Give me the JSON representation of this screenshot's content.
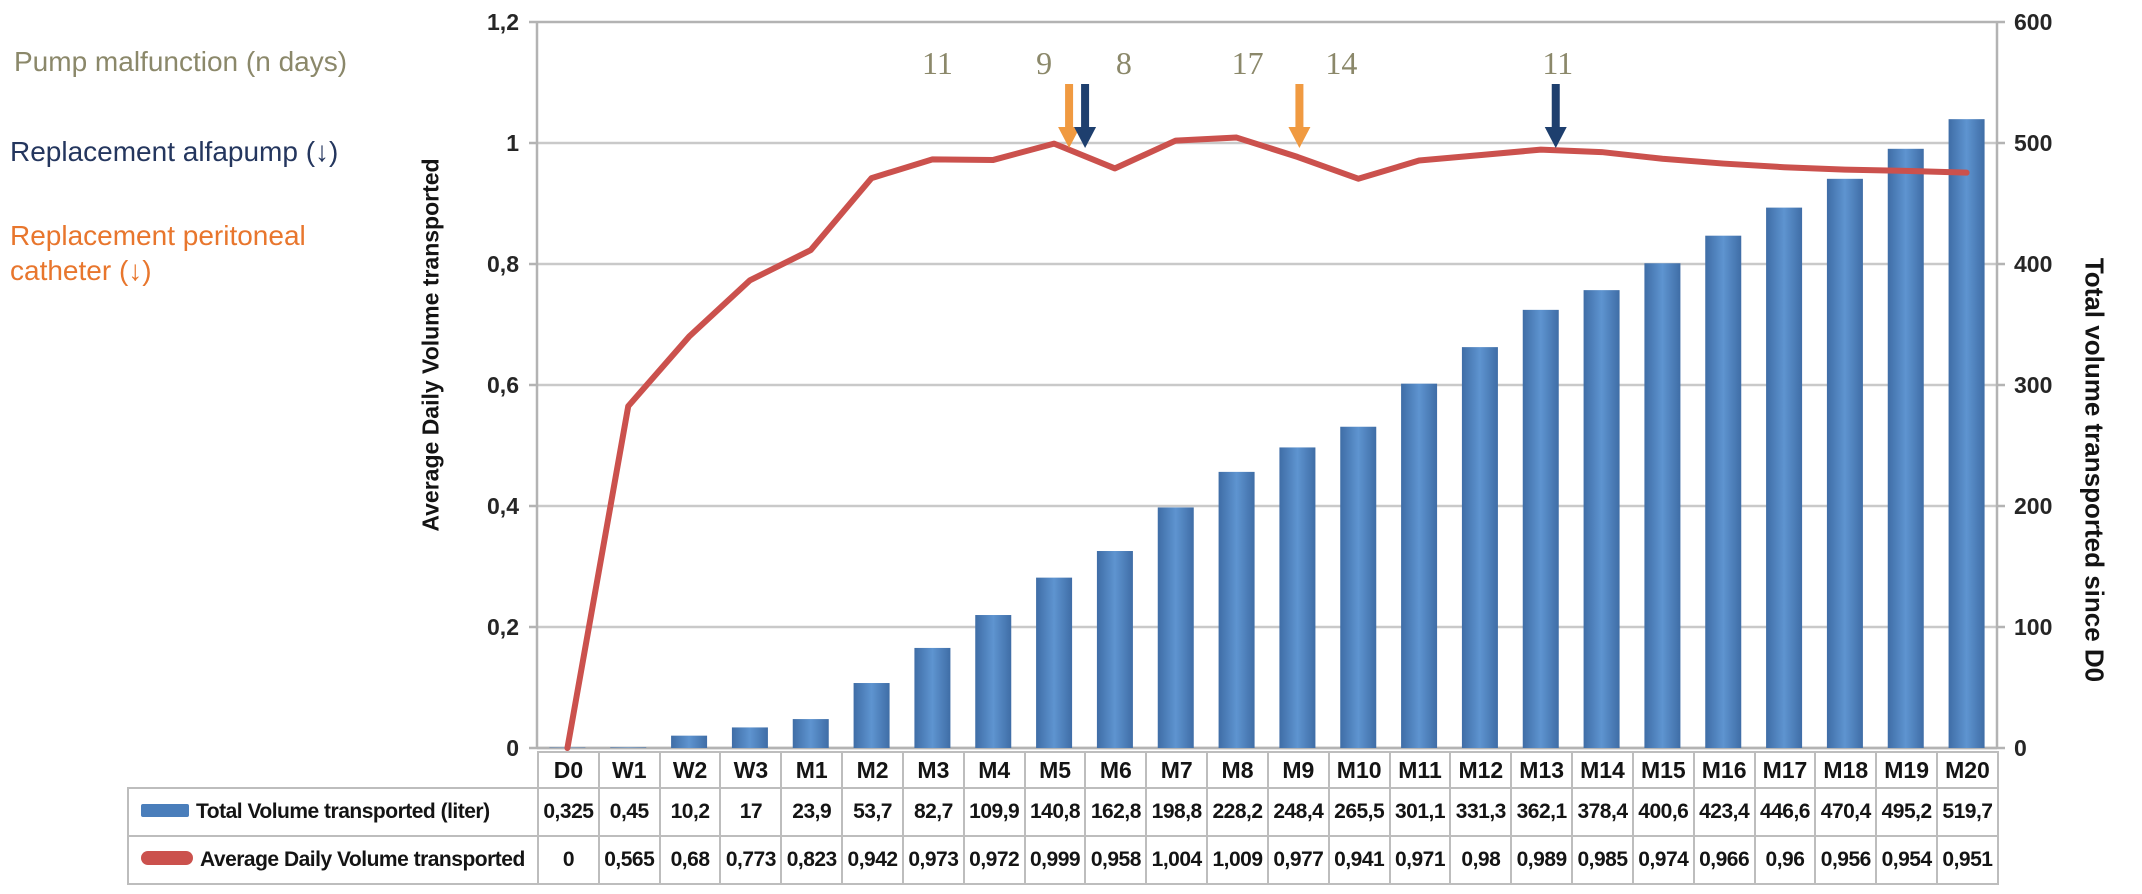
{
  "side_legend": {
    "pump_malfunction": "Pump malfunction (n days)",
    "replacement_alfapump": "Replacement alfapump (↓)",
    "replacement_catheter": "Replacement peritoneal catheter (↓)",
    "colors": {
      "pump": "#8b886a",
      "alfapump": "#24365e",
      "catheter": "#e8762d"
    }
  },
  "chart_data": {
    "type": "bar+line",
    "number_format": "decimal-comma",
    "grid": true,
    "legend_position": "bottom-table",
    "categories": [
      "D0",
      "W1",
      "W2",
      "W3",
      "M1",
      "M2",
      "M3",
      "M4",
      "M5",
      "M6",
      "M7",
      "M8",
      "M9",
      "M10",
      "M11",
      "M12",
      "M13",
      "M14",
      "M15",
      "M16",
      "M17",
      "M18",
      "M19",
      "M20"
    ],
    "series": [
      {
        "name": "Total Volume transported (liter)",
        "type": "bar",
        "axis": "right",
        "color": "#4a7ebb",
        "values": [
          0.325,
          0.45,
          10.2,
          17,
          23.9,
          53.7,
          82.7,
          109.9,
          140.8,
          162.8,
          198.8,
          228.2,
          248.4,
          265.5,
          301.1,
          331.3,
          362.1,
          378.4,
          400.6,
          423.4,
          446.6,
          470.4,
          495.2,
          519.7
        ]
      },
      {
        "name": "Average Daily Volume transported",
        "type": "line",
        "axis": "left",
        "color": "#cb514d",
        "values": [
          0,
          0.565,
          0.68,
          0.773,
          0.823,
          0.942,
          0.973,
          0.972,
          0.999,
          0.958,
          1.004,
          1.009,
          0.977,
          0.941,
          0.971,
          0.98,
          0.989,
          0.985,
          0.974,
          0.966,
          0.96,
          0.956,
          0.954,
          0.951
        ]
      }
    ],
    "left_axis": {
      "title": "Average Daily Volume transported",
      "min": 0,
      "max": 1.2,
      "step": 0.2,
      "tick_labels": [
        "0",
        "0,2",
        "0,4",
        "0,6",
        "0,8",
        "1",
        "1,2"
      ]
    },
    "right_axis": {
      "title": "Total volume transported since D0",
      "min": 0,
      "max": 600,
      "step": 100,
      "tick_labels": [
        "0",
        "100",
        "200",
        "300",
        "400",
        "500",
        "600"
      ]
    },
    "annotations": {
      "meaning": "Pump malfunction (n days)",
      "color": "#8b886a",
      "items": [
        {
          "text": "11",
          "category": "M3",
          "dx": 5
        },
        {
          "text": "9",
          "category": "M5",
          "dx": -10
        },
        {
          "text": "8",
          "category": "M6",
          "dx": 9
        },
        {
          "text": "17",
          "category": "M8",
          "dx": 11
        },
        {
          "text": "14",
          "category": "M9",
          "dx": 44
        },
        {
          "text": "11",
          "category": "M13",
          "dx": 17
        }
      ]
    },
    "event_arrows": [
      {
        "event": "replacement-peritoneal-catheter",
        "color": "#f09a41",
        "category": "M5",
        "dx": 15
      },
      {
        "event": "replacement-alfapump",
        "color": "#1e3f6e",
        "category": "M5",
        "dx": 31
      },
      {
        "event": "replacement-peritoneal-catheter",
        "color": "#f09a41",
        "category": "M9",
        "dx": 2
      },
      {
        "event": "replacement-alfapump",
        "color": "#1e3f6e",
        "category": "M13",
        "dx": 15
      }
    ]
  }
}
